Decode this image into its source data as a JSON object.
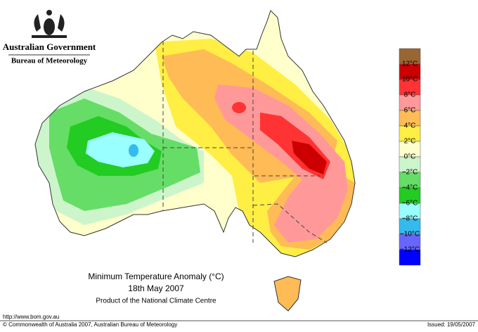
{
  "header": {
    "government": "Australian Government",
    "agency": "Bureau of Meteorology"
  },
  "map": {
    "title": "Minimum Temperature Anomaly (°C)",
    "date": "18th May 2007",
    "product": "Product of the National Climate Centre"
  },
  "legend": {
    "colors": [
      "#996633",
      "#cc0000",
      "#ff3333",
      "#ff9999",
      "#ffbb55",
      "#ffee44",
      "#ffffcc",
      "#ccf5cc",
      "#66dd66",
      "#22cc22",
      "#99ffff",
      "#33bbee",
      "#6666ff",
      "#0000ff"
    ],
    "labels": [
      "12°C",
      "10°C",
      "8°C",
      "6°C",
      "4°C",
      "2°C",
      "0°C",
      "−2°C",
      "−4°C",
      "−6°C",
      "−8°C",
      "−10°C",
      "−12°C"
    ]
  },
  "footer": {
    "url": "http://www.bom.gov.au",
    "copyright": "© Commonwealth of Australia 2007, Australian Bureau of Meteorology",
    "issued": "Issued: 19/05/2007"
  }
}
